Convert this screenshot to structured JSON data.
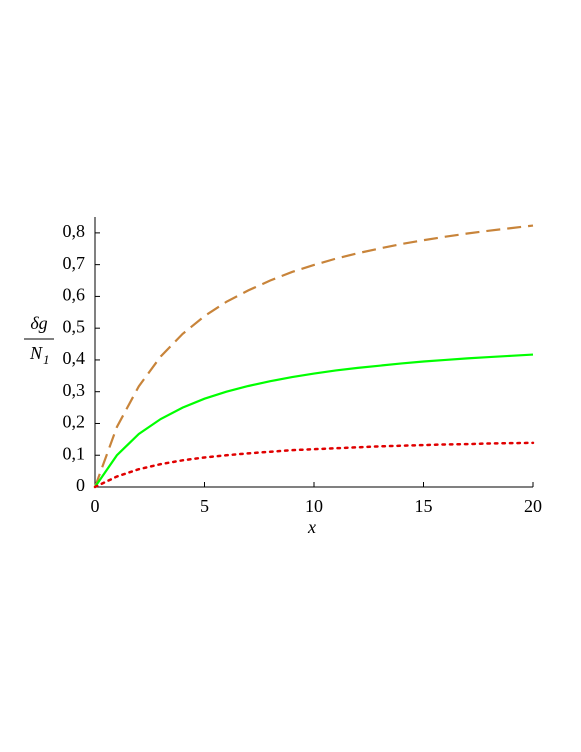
{
  "chart_data": {
    "type": "line",
    "x_label": "x",
    "y_label": {
      "numerator": "δg",
      "denominator": "N",
      "denominator_subscript": "1"
    },
    "x": [
      0,
      1,
      2,
      3,
      4,
      5,
      6,
      7,
      8,
      9,
      10,
      11,
      12,
      13,
      14,
      15,
      16,
      17,
      18,
      19,
      20
    ],
    "series": [
      {
        "color": "#c8843a",
        "style": "dash",
        "values": [
          0,
          0.189,
          0.317,
          0.411,
          0.482,
          0.538,
          0.583,
          0.619,
          0.65,
          0.677,
          0.699,
          0.719,
          0.736,
          0.751,
          0.765,
          0.777,
          0.788,
          0.798,
          0.807,
          0.815,
          0.823
        ]
      },
      {
        "color": "#00ff00",
        "style": "solid",
        "values": [
          0,
          0.1,
          0.167,
          0.214,
          0.25,
          0.278,
          0.3,
          0.318,
          0.333,
          0.346,
          0.357,
          0.367,
          0.375,
          0.382,
          0.389,
          0.395,
          0.4,
          0.405,
          0.409,
          0.413,
          0.417
        ]
      },
      {
        "color": "#e00000",
        "style": "dot",
        "values": [
          0,
          0.033,
          0.056,
          0.072,
          0.084,
          0.093,
          0.1,
          0.106,
          0.111,
          0.116,
          0.119,
          0.122,
          0.125,
          0.128,
          0.13,
          0.132,
          0.134,
          0.135,
          0.137,
          0.138,
          0.139
        ]
      }
    ],
    "xlim": [
      0,
      20
    ],
    "ylim": [
      0,
      0.85
    ],
    "xticks": [
      0,
      5,
      10,
      15,
      20
    ],
    "yticks": [
      0,
      {
        "value": 0.1,
        "label": "0,1"
      },
      {
        "value": 0.2,
        "label": "0,2"
      },
      {
        "value": 0.3,
        "label": "0,3"
      },
      {
        "value": 0.4,
        "label": "0,4"
      },
      {
        "value": 0.5,
        "label": "0,5"
      },
      {
        "value": 0.6,
        "label": "0,6"
      },
      {
        "value": 0.7,
        "label": "0,7"
      },
      {
        "value": 0.8,
        "label": "0,8"
      }
    ],
    "grid": false
  }
}
